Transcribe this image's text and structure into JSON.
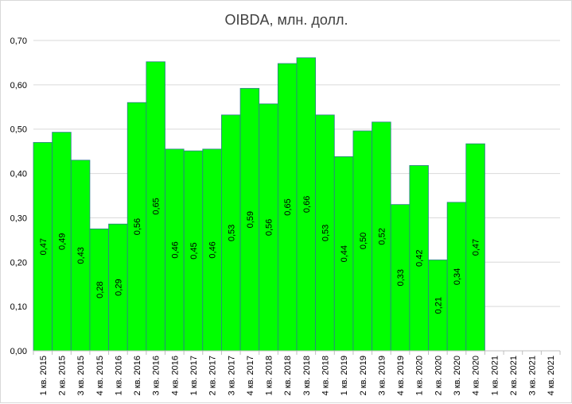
{
  "chart_data": {
    "type": "bar",
    "title": "OIBDA, млн. долл.",
    "xlabel": "",
    "ylabel": "",
    "ylim": [
      0,
      0.7
    ],
    "y_ticks": [
      "0,00",
      "0,10",
      "0,20",
      "0,30",
      "0,40",
      "0,50",
      "0,60",
      "0,70"
    ],
    "grid": true,
    "legend": "none",
    "categories": [
      "1 кв. 2015",
      "2 кв. 2015",
      "3 кв. 2015",
      "4 кв. 2015",
      "1 кв. 2016",
      "2 кв. 2016",
      "3 кв. 2016",
      "4 кв. 2016",
      "1 кв. 2017",
      "2 кв. 2017",
      "3 кв. 2017",
      "4 кв. 2017",
      "1 кв. 2018",
      "2 кв. 2018",
      "3 кв. 2018",
      "4 кв. 2018",
      "1 кв. 2019",
      "2 кв. 2019",
      "3 кв. 2019",
      "4 кв. 2019",
      "1 кв. 2020",
      "2 кв. 2020",
      "3 кв. 2020",
      "4 кв. 2020",
      "1 кв. 2021",
      "2 кв. 2021",
      "3 кв. 2021",
      "4 кв. 2021"
    ],
    "values": [
      0.47,
      0.493,
      0.43,
      0.275,
      0.286,
      0.56,
      0.652,
      0.455,
      0.451,
      0.455,
      0.532,
      0.592,
      0.557,
      0.648,
      0.661,
      0.532,
      0.438,
      0.496,
      0.516,
      0.33,
      0.418,
      0.205,
      0.335,
      0.467,
      null,
      null,
      null,
      null
    ],
    "value_labels": [
      "0,47",
      "0,49",
      "0,43",
      "0,28",
      "0,29",
      "0,56",
      "0,65",
      "0,46",
      "0,45",
      "0,46",
      "0,53",
      "0,59",
      "0,56",
      "0,65",
      "0,66",
      "0,53",
      "0,44",
      "0,50",
      "0,52",
      "0,33",
      "0,42",
      "0,21",
      "0,34",
      "0,47",
      "",
      "",
      "",
      ""
    ],
    "colors": {
      "bar_fill": "#00ff00",
      "bar_stroke": "#2e7d8c",
      "grid": "#d9d9d9",
      "axis": "#bfbfbf",
      "text": "#000000",
      "title": "#404040"
    }
  }
}
